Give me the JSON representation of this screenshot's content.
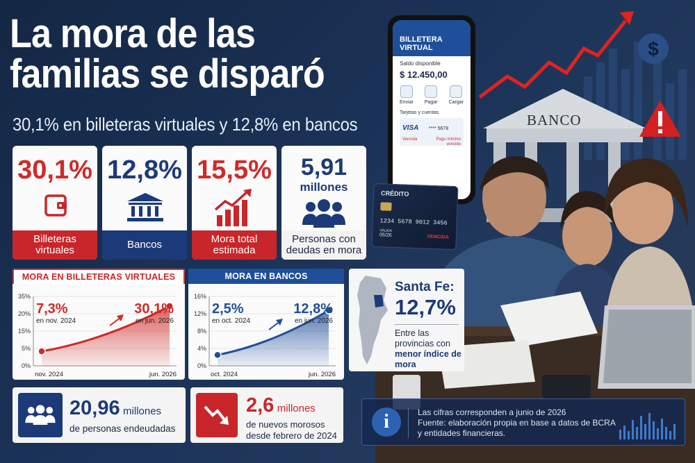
{
  "headline": {
    "title_line1": "La mora de las",
    "title_line2": "familias se disparó",
    "subtitle": "30,1% en billeteras virtuales y 12,8% en bancos"
  },
  "stats": [
    {
      "value": "30,1%",
      "label": "Billeteras virtuales",
      "icon": "wallet-icon"
    },
    {
      "value": "12,8%",
      "label": "Bancos",
      "icon": "bank-icon"
    },
    {
      "value": "15,5%",
      "label": "Mora total estimada",
      "icon": "growth-chart-icon"
    },
    {
      "value": "5,91",
      "unit": "millones",
      "label": "Personas con deudas en mora",
      "icon": "people-icon"
    }
  ],
  "chart_data": [
    {
      "type": "area",
      "title": "MORA EN BILLETERAS VIRTUALES",
      "x": [
        "nov. 2024",
        "jun. 2026"
      ],
      "values": [
        7.3,
        30.1
      ],
      "yticks": [
        "35%",
        "20%",
        "15%",
        "5%",
        "0%"
      ],
      "ylim": [
        0,
        35
      ],
      "annotations": [
        {
          "value": "7,3%",
          "label": "en nov. 2024"
        },
        {
          "value": "30,1%",
          "label": "en jun. 2026"
        }
      ],
      "color": "#d02a27"
    },
    {
      "type": "area",
      "title": "MORA EN BANCOS",
      "x": [
        "oct. 2024",
        "jun. 2026"
      ],
      "values": [
        2.5,
        12.8
      ],
      "yticks": [
        "16%",
        "12%",
        "8%",
        "4%",
        "0%"
      ],
      "ylim": [
        0,
        16
      ],
      "annotations": [
        {
          "value": "2,5%",
          "label": "en oct. 2024"
        },
        {
          "value": "12,8%",
          "label": "en jun. 2026"
        }
      ],
      "color": "#1f4f9a"
    }
  ],
  "santa_fe": {
    "name": "Santa Fe:",
    "value": "12,7%",
    "text_before": "Entre las provincias con ",
    "text_bold": "menor índice de mora"
  },
  "bottom": {
    "debtors_value": "20,96",
    "debtors_unit": "millones",
    "debtors_text": "de personas endeudadas",
    "new_value": "2,6",
    "new_unit": "millones",
    "new_text_line1": "de nuevos morosos",
    "new_text_line2": "desde febrero de 2024"
  },
  "note": {
    "line1": "Las cifras corresponden a junio de 2026",
    "line2": "Fuente: elaboración propia en base a datos de BCRA",
    "line3": "y entidades financieras."
  },
  "phone": {
    "app_title_1": "BILLETERA",
    "app_title_2": "VIRTUAL",
    "balance_label": "Saldo disponible",
    "balance": "$ 12.450,00",
    "actions": [
      "Enviar",
      "Pagar",
      "Cargar"
    ],
    "cards_label": "Tarjetas y cuentas",
    "card_brand": "VISA",
    "card_number": "**** 5678",
    "card_status": "Vencida",
    "card_min": "Pago mínimo vencido"
  },
  "credit_card": {
    "label": "CRÉDITO",
    "number": "1234 5678 9012 3456",
    "valid_label": "VÁLIDA",
    "expiry": "05/26",
    "status": "VENCIDA"
  },
  "bank_sign": "BANCO",
  "colors": {
    "red": "#d02a27",
    "navy": "#1c3a78",
    "blue": "#1f4f9a",
    "background": "#1b3358"
  }
}
